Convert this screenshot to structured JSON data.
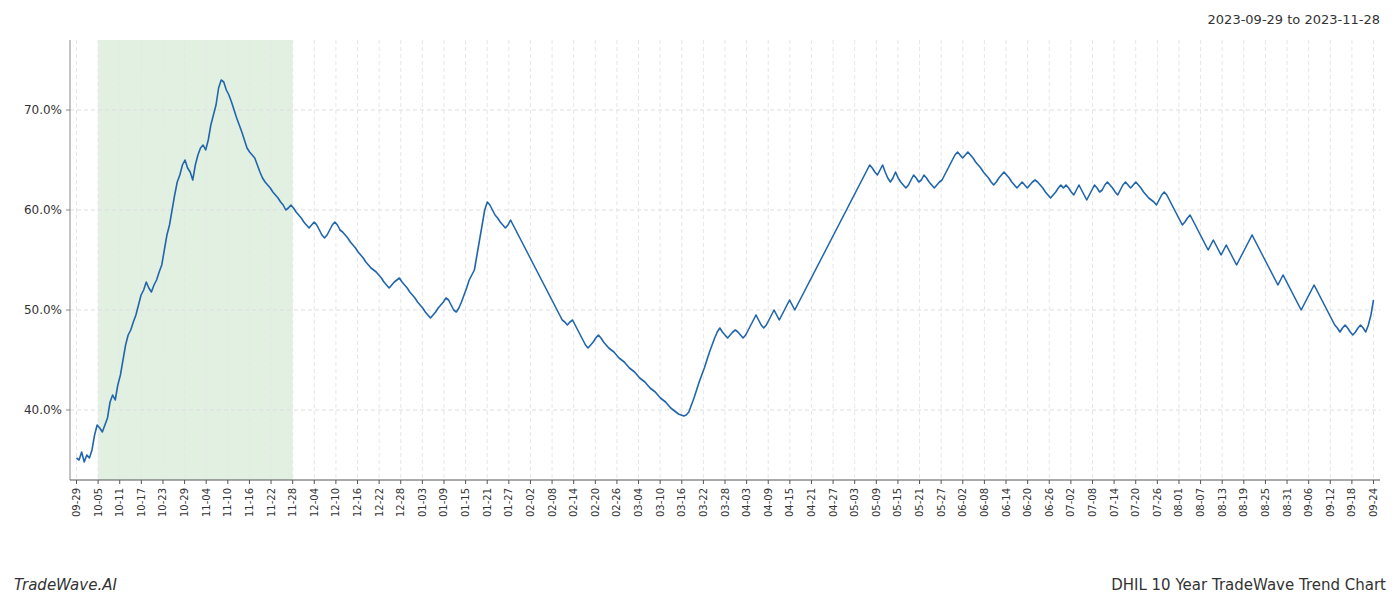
{
  "chart_data": {
    "type": "line",
    "title": "DHIL 10 Year TradeWave Trend Chart",
    "subtitle": "2023-09-29 to 2023-11-28",
    "annotations": [
      "TradeWave.AI"
    ],
    "color": "#2166ac",
    "grid": true,
    "ylim": [
      33,
      77
    ],
    "yticks": [
      {
        "value": 40.0,
        "label": "40.0%"
      },
      {
        "value": 50.0,
        "label": "50.0%"
      },
      {
        "value": 60.0,
        "label": "60.0%"
      },
      {
        "value": 70.0,
        "label": "70.0%"
      }
    ],
    "xticks": [
      "09-29",
      "10-05",
      "10-11",
      "10-17",
      "10-23",
      "10-29",
      "11-04",
      "11-10",
      "11-16",
      "11-22",
      "11-28",
      "12-04",
      "12-10",
      "12-16",
      "12-22",
      "12-28",
      "01-03",
      "01-09",
      "01-15",
      "01-21",
      "01-27",
      "02-02",
      "02-08",
      "02-14",
      "02-20",
      "02-26",
      "03-04",
      "03-10",
      "03-16",
      "03-22",
      "03-28",
      "04-03",
      "04-09",
      "04-15",
      "04-21",
      "04-27",
      "05-03",
      "05-09",
      "05-15",
      "05-21",
      "05-27",
      "06-02",
      "06-08",
      "06-14",
      "06-20",
      "06-26",
      "07-02",
      "07-08",
      "07-14",
      "07-20",
      "07-26",
      "08-01",
      "08-07",
      "08-13",
      "08-19",
      "08-25",
      "08-31",
      "09-06",
      "09-12",
      "09-18",
      "09-24"
    ],
    "highlight": {
      "start": "10-05",
      "end": "11-28",
      "color": "#d6ead6"
    },
    "values": [
      35.2,
      35.0,
      35.8,
      34.8,
      35.5,
      35.2,
      36.0,
      37.5,
      38.5,
      38.2,
      37.8,
      38.5,
      39.2,
      40.8,
      41.5,
      41.0,
      42.5,
      43.5,
      45.0,
      46.5,
      47.5,
      48.0,
      48.8,
      49.5,
      50.5,
      51.5,
      52.0,
      52.8,
      52.2,
      51.8,
      52.5,
      53.0,
      53.8,
      54.5,
      56.0,
      57.5,
      58.5,
      60.0,
      61.5,
      62.8,
      63.5,
      64.5,
      65.0,
      64.2,
      63.8,
      63.0,
      64.5,
      65.5,
      66.2,
      66.5,
      66.0,
      67.0,
      68.5,
      69.5,
      70.5,
      72.2,
      73.0,
      72.8,
      72.0,
      71.5,
      70.8,
      70.0,
      69.2,
      68.5,
      67.8,
      67.0,
      66.2,
      65.8,
      65.5,
      65.2,
      64.5,
      63.8,
      63.2,
      62.8,
      62.5,
      62.2,
      61.8,
      61.5,
      61.2,
      60.8,
      60.5,
      60.0,
      60.2,
      60.5,
      60.2,
      59.8,
      59.5,
      59.2,
      58.8,
      58.5,
      58.2,
      58.5,
      58.8,
      58.5,
      58.0,
      57.5,
      57.2,
      57.5,
      58.0,
      58.5,
      58.8,
      58.5,
      58.0,
      57.8,
      57.5,
      57.2,
      56.8,
      56.5,
      56.2,
      55.8,
      55.5,
      55.2,
      54.8,
      54.5,
      54.2,
      54.0,
      53.8,
      53.5,
      53.2,
      52.8,
      52.5,
      52.2,
      52.5,
      52.8,
      53.0,
      53.2,
      52.8,
      52.5,
      52.2,
      51.8,
      51.5,
      51.2,
      50.8,
      50.5,
      50.2,
      49.8,
      49.5,
      49.2,
      49.5,
      49.8,
      50.2,
      50.5,
      50.8,
      51.2,
      51.0,
      50.5,
      50.0,
      49.8,
      50.2,
      50.8,
      51.5,
      52.2,
      53.0,
      53.5,
      54.0,
      55.5,
      57.0,
      58.5,
      60.0,
      60.8,
      60.5,
      60.0,
      59.5,
      59.2,
      58.8,
      58.5,
      58.2,
      58.5,
      59.0,
      58.5,
      58.0,
      57.5,
      57.0,
      56.5,
      56.0,
      55.5,
      55.0,
      54.5,
      54.0,
      53.5,
      53.0,
      52.5,
      52.0,
      51.5,
      51.0,
      50.5,
      50.0,
      49.5,
      49.0,
      48.8,
      48.5,
      48.8,
      49.0,
      48.5,
      48.0,
      47.5,
      47.0,
      46.5,
      46.2,
      46.5,
      46.8,
      47.2,
      47.5,
      47.2,
      46.8,
      46.5,
      46.2,
      46.0,
      45.8,
      45.5,
      45.2,
      45.0,
      44.8,
      44.5,
      44.2,
      44.0,
      43.8,
      43.5,
      43.2,
      43.0,
      42.8,
      42.5,
      42.2,
      42.0,
      41.8,
      41.5,
      41.2,
      41.0,
      40.8,
      40.5,
      40.2,
      40.0,
      39.8,
      39.6,
      39.5,
      39.4,
      39.5,
      39.8,
      40.5,
      41.2,
      42.0,
      42.8,
      43.5,
      44.2,
      45.0,
      45.8,
      46.5,
      47.2,
      47.8,
      48.2,
      47.8,
      47.5,
      47.2,
      47.5,
      47.8,
      48.0,
      47.8,
      47.5,
      47.2,
      47.5,
      48.0,
      48.5,
      49.0,
      49.5,
      49.0,
      48.5,
      48.2,
      48.5,
      49.0,
      49.5,
      50.0,
      49.5,
      49.0,
      49.5,
      50.0,
      50.5,
      51.0,
      50.5,
      50.0,
      50.5,
      51.0,
      51.5,
      52.0,
      52.5,
      53.0,
      53.5,
      54.0,
      54.5,
      55.0,
      55.5,
      56.0,
      56.5,
      57.0,
      57.5,
      58.0,
      58.5,
      59.0,
      59.5,
      60.0,
      60.5,
      61.0,
      61.5,
      62.0,
      62.5,
      63.0,
      63.5,
      64.0,
      64.5,
      64.2,
      63.8,
      63.5,
      64.0,
      64.5,
      63.8,
      63.2,
      62.8,
      63.2,
      63.8,
      63.2,
      62.8,
      62.5,
      62.2,
      62.5,
      63.0,
      63.5,
      63.2,
      62.8,
      63.0,
      63.5,
      63.2,
      62.8,
      62.5,
      62.2,
      62.5,
      62.8,
      63.0,
      63.5,
      64.0,
      64.5,
      65.0,
      65.5,
      65.8,
      65.5,
      65.2,
      65.5,
      65.8,
      65.5,
      65.2,
      64.8,
      64.5,
      64.2,
      63.8,
      63.5,
      63.2,
      62.8,
      62.5,
      62.8,
      63.2,
      63.5,
      63.8,
      63.5,
      63.2,
      62.8,
      62.5,
      62.2,
      62.5,
      62.8,
      62.5,
      62.2,
      62.5,
      62.8,
      63.0,
      62.8,
      62.5,
      62.2,
      61.8,
      61.5,
      61.2,
      61.5,
      61.8,
      62.2,
      62.5,
      62.2,
      62.5,
      62.2,
      61.8,
      61.5,
      62.0,
      62.5,
      62.0,
      61.5,
      61.0,
      61.5,
      62.0,
      62.5,
      62.2,
      61.8,
      62.0,
      62.5,
      62.8,
      62.5,
      62.2,
      61.8,
      61.5,
      62.0,
      62.5,
      62.8,
      62.5,
      62.2,
      62.5,
      62.8,
      62.5,
      62.2,
      61.8,
      61.5,
      61.2,
      61.0,
      60.8,
      60.5,
      61.0,
      61.5,
      61.8,
      61.5,
      61.0,
      60.5,
      60.0,
      59.5,
      59.0,
      58.5,
      58.8,
      59.2,
      59.5,
      59.0,
      58.5,
      58.0,
      57.5,
      57.0,
      56.5,
      56.0,
      56.5,
      57.0,
      56.5,
      56.0,
      55.5,
      56.0,
      56.5,
      56.0,
      55.5,
      55.0,
      54.5,
      55.0,
      55.5,
      56.0,
      56.5,
      57.0,
      57.5,
      57.0,
      56.5,
      56.0,
      55.5,
      55.0,
      54.5,
      54.0,
      53.5,
      53.0,
      52.5,
      53.0,
      53.5,
      53.0,
      52.5,
      52.0,
      51.5,
      51.0,
      50.5,
      50.0,
      50.5,
      51.0,
      51.5,
      52.0,
      52.5,
      52.0,
      51.5,
      51.0,
      50.5,
      50.0,
      49.5,
      49.0,
      48.5,
      48.2,
      47.8,
      48.2,
      48.5,
      48.2,
      47.8,
      47.5,
      47.8,
      48.2,
      48.5,
      48.2,
      47.8,
      48.5,
      49.5,
      51.0
    ]
  }
}
